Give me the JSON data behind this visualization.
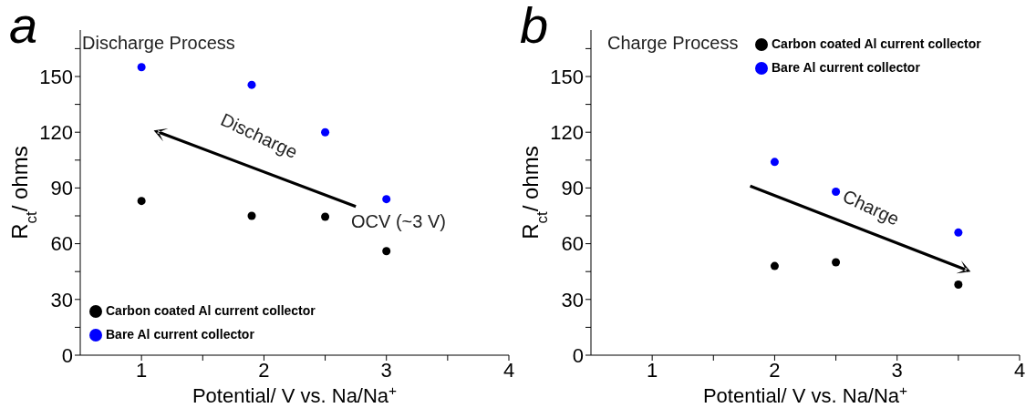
{
  "chart_data": [
    {
      "type": "scatter",
      "title": "a",
      "xlabel": "Potential/ V vs. Na/Na$^{+}$",
      "ylabel": "R$_{ct}$/ ohms",
      "annotations": [
        "Discharge Process",
        "Discharge",
        "OCV (~3 V)"
      ],
      "xlim": [
        0.5,
        4
      ],
      "xticks": [
        1,
        {
          "value": 1.5,
          "label": null
        },
        2,
        {
          "value": 2.5,
          "label": null
        },
        3,
        {
          "value": 3.5,
          "label": null
        },
        4
      ],
      "ylim": [
        0,
        175
      ],
      "yticks": [
        0,
        {
          "value": 15,
          "label": null
        },
        30,
        {
          "value": 45,
          "label": null
        },
        60,
        {
          "value": 75,
          "label": null
        },
        90,
        {
          "value": 105,
          "label": null
        },
        120,
        {
          "value": 135,
          "label": null
        },
        150,
        {
          "value": 165,
          "label": null
        }
      ],
      "marker": "circle",
      "legend": "bottom left",
      "grid": false,
      "series": [
        {
          "name": "Carbon coated Al current collector",
          "color": "#000000",
          "x": [
            1,
            1.9,
            2.5,
            3
          ],
          "values": [
            83,
            75,
            74.5,
            56
          ]
        },
        {
          "name": "Bare Al current collector",
          "color": "#0000ff",
          "x": [
            1,
            1.9,
            2.5,
            3
          ],
          "values": [
            155,
            145.5,
            120,
            84
          ]
        }
      ]
    },
    {
      "type": "scatter",
      "title": "b",
      "xlabel": "Potential/ V vs. Na/Na$^{+}$",
      "ylabel": "R$_{ct}$/ ohms",
      "annotations": [
        "Charge Process",
        "Charge"
      ],
      "xlim": [
        0.5,
        4
      ],
      "xticks": [
        1,
        {
          "value": 1.5,
          "label": null
        },
        2,
        {
          "value": 2.5,
          "label": null
        },
        3,
        {
          "value": 3.5,
          "label": null
        },
        4
      ],
      "ylim": [
        0,
        175
      ],
      "yticks": [
        0,
        {
          "value": 15,
          "label": null
        },
        30,
        {
          "value": 45,
          "label": null
        },
        60,
        {
          "value": 75,
          "label": null
        },
        90,
        {
          "value": 105,
          "label": null
        },
        120,
        {
          "value": 135,
          "label": null
        },
        150,
        {
          "value": 165,
          "label": null
        }
      ],
      "marker": "circle",
      "legend": "top right",
      "grid": false,
      "series": [
        {
          "name": "Carbon coated Al current collector",
          "color": "#000000",
          "x": [
            2,
            2.5,
            3.5
          ],
          "values": [
            48,
            50,
            38
          ]
        },
        {
          "name": "Bare Al current collector",
          "color": "#0000ff",
          "x": [
            2,
            2.5,
            3.5
          ],
          "values": [
            104,
            88,
            66
          ]
        }
      ]
    }
  ]
}
